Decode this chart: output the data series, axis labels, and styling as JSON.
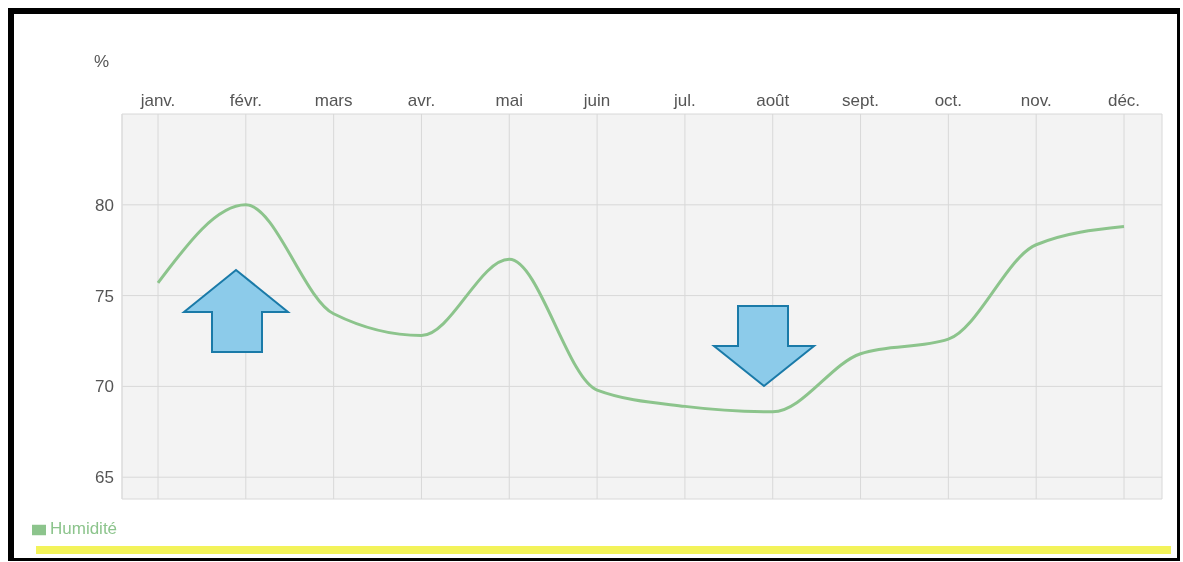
{
  "chart_data": {
    "type": "line",
    "ylabel": "%",
    "categories": [
      "janv.",
      "févr.",
      "mars",
      "avr.",
      "mai",
      "juin",
      "jul.",
      "août",
      "sept.",
      "oct.",
      "nov.",
      "déc."
    ],
    "series": [
      {
        "name": "Humidité",
        "color": "#8cc48c",
        "values": [
          75.7,
          80,
          74,
          72.8,
          77,
          69.8,
          68.9,
          68.6,
          71.8,
          72.6,
          77.8,
          78.8
        ]
      }
    ],
    "ylim": [
      63.8,
      85
    ],
    "yticks": [
      65,
      70,
      75,
      80
    ],
    "grid": true,
    "legend": "bottom left",
    "marker": "none",
    "line_style": "solid"
  }
}
